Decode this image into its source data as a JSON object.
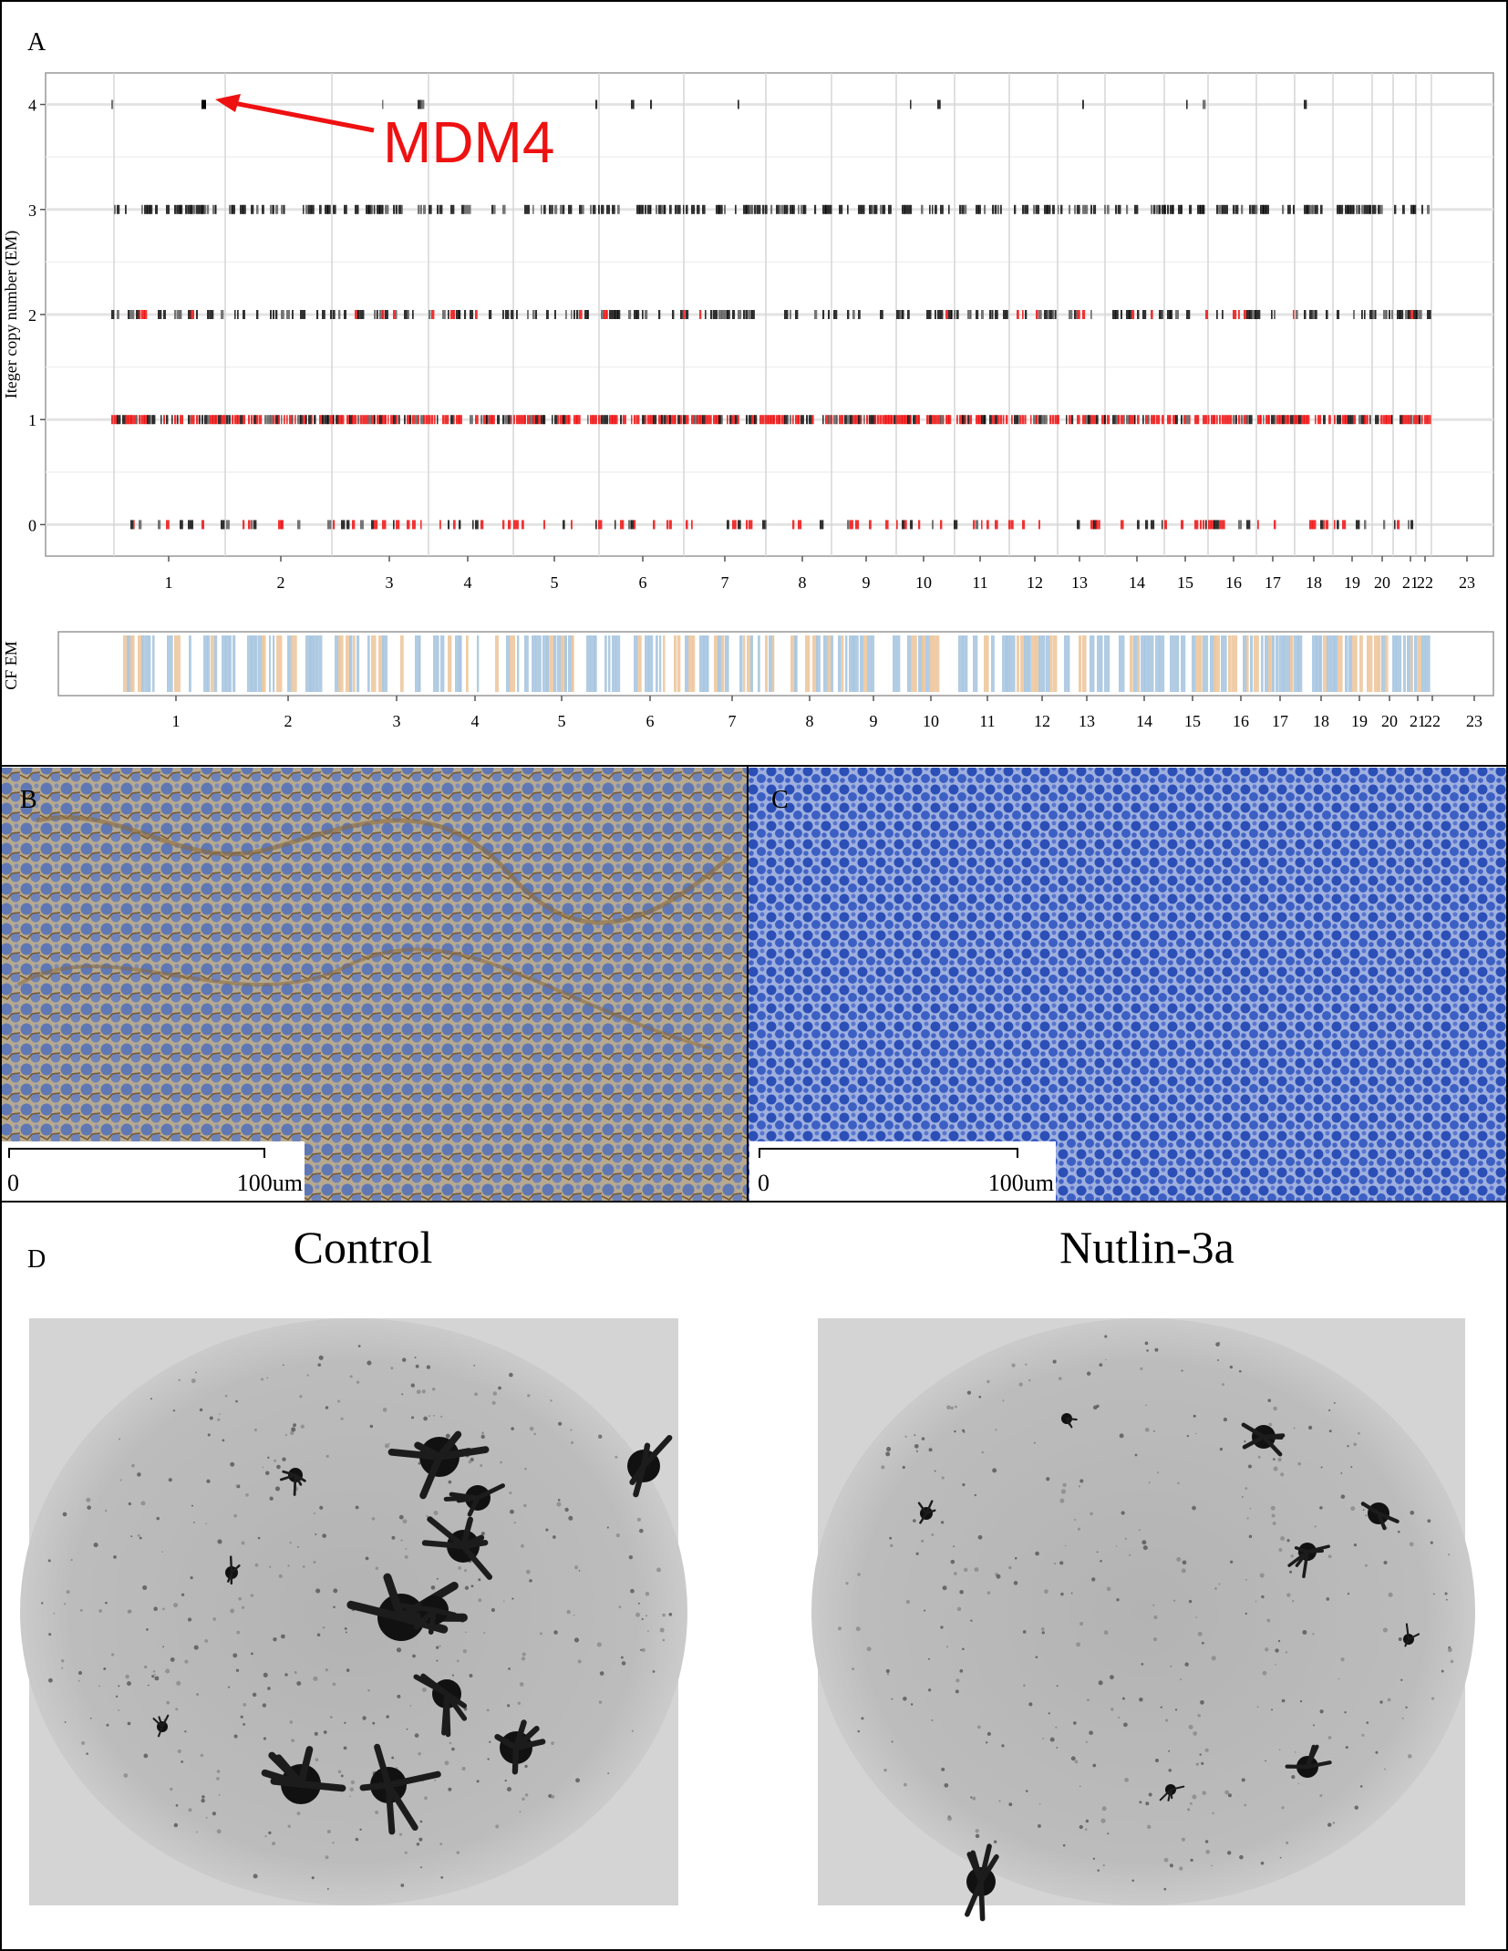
{
  "panel_a": {
    "label": "A",
    "annotation": "MDM4",
    "chart_data": {
      "type": "scatter",
      "ylabel": "Iteger copy number (EM)",
      "y_ticks": [
        "0",
        "1",
        "2",
        "3",
        "4"
      ],
      "ylim": [
        -0.3,
        4.3
      ],
      "x_ticks": [
        "1",
        "2",
        "3",
        "4",
        "5",
        "6",
        "7",
        "8",
        "9",
        "10",
        "11",
        "12",
        "13",
        "14",
        "15",
        "16",
        "17",
        "18",
        "19",
        "20",
        "21",
        "22",
        "23"
      ],
      "grid": true,
      "levels": [
        {
          "copy_number": 4,
          "density": 0.03,
          "red_share": 0.0
        },
        {
          "copy_number": 3,
          "density": 0.55,
          "red_share": 0.0
        },
        {
          "copy_number": 2,
          "density": 0.45,
          "red_share": 0.12
        },
        {
          "copy_number": 1,
          "density": 0.85,
          "red_share": 0.6
        },
        {
          "copy_number": 0,
          "density": 0.3,
          "red_share": 0.55
        }
      ],
      "highlight": {
        "label": "MDM4",
        "chromosome": "1",
        "copy_number": 4
      },
      "colors": {
        "gain": "#000000",
        "loss": "#ee1111"
      }
    },
    "cf_track": {
      "ylabel": "CF EM",
      "x_ticks": [
        "1",
        "2",
        "3",
        "4",
        "5",
        "6",
        "7",
        "8",
        "9",
        "10",
        "11",
        "12",
        "13",
        "14",
        "15",
        "16",
        "17",
        "18",
        "19",
        "20",
        "21",
        "22",
        "23"
      ],
      "colors": {
        "blue": "#a9c6e0",
        "orange": "#edc89f"
      }
    },
    "colors": {
      "annotation": "#ee1111"
    }
  },
  "panel_b": {
    "label": "B",
    "scale_start": "0",
    "scale_end": "100um",
    "colors": {
      "nuclei": "#5f77b3",
      "stain": "#8a6a3c",
      "background": "#b7a98f"
    }
  },
  "panel_c": {
    "label": "C",
    "scale_start": "0",
    "scale_end": "100um",
    "colors": {
      "nuclei": "#2b4fb6",
      "background": "#9fb0df"
    }
  },
  "panel_d": {
    "label": "D",
    "left_title": "Control",
    "right_title": "Nutlin-3a",
    "colors": {
      "well": "#b8b8b8",
      "colony": "#111111",
      "frame": "#d4d4d4"
    }
  }
}
